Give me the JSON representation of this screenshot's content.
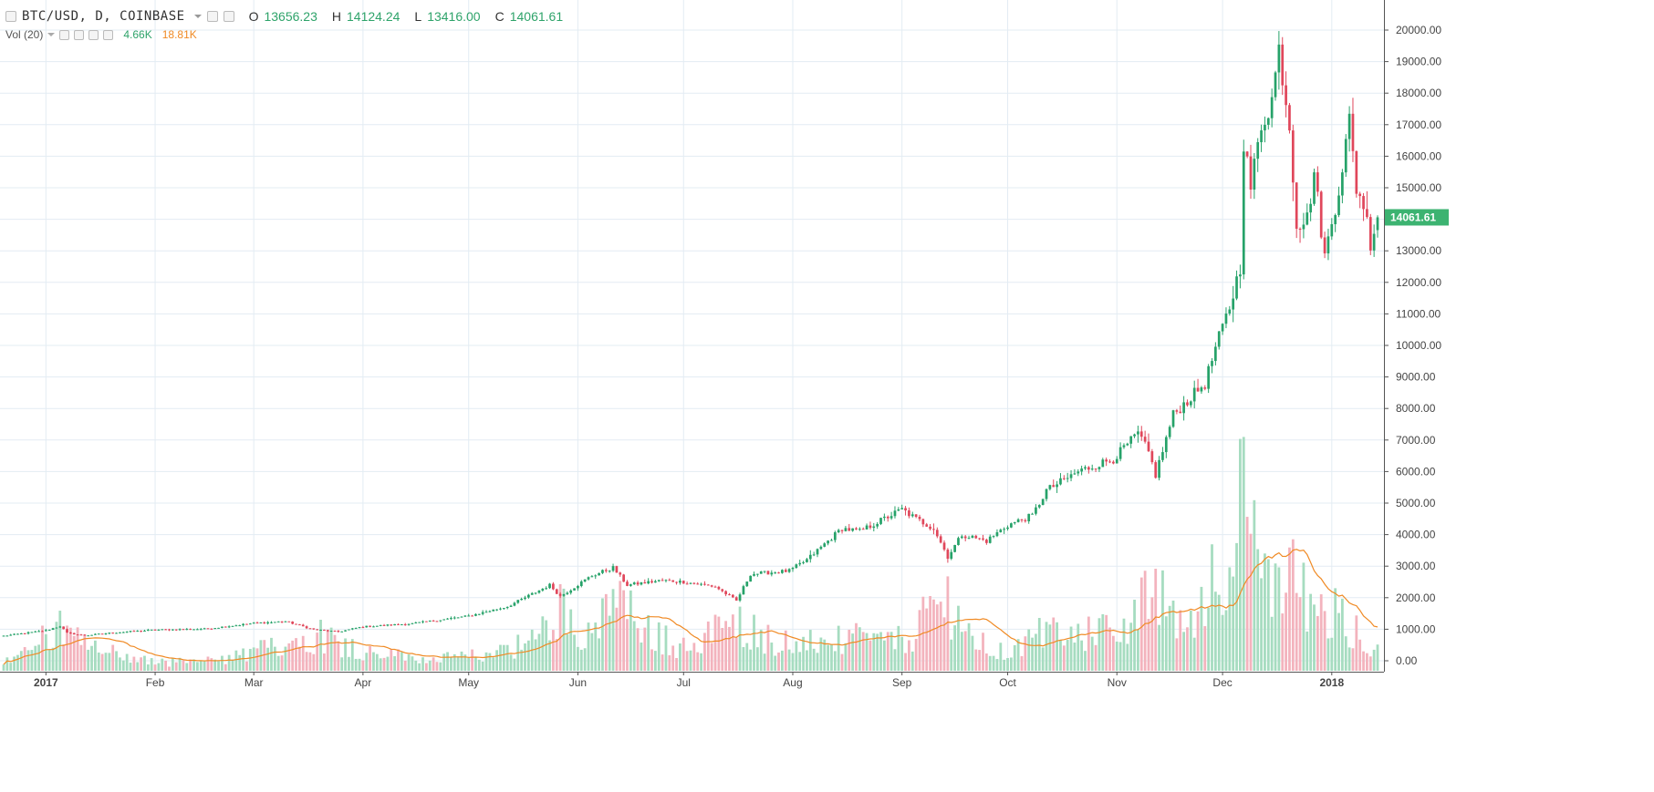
{
  "header": {
    "symbol": "BTC/USD, D, COINBASE",
    "open_label": "O",
    "open": "13656.23",
    "high_label": "H",
    "high": "14124.24",
    "low_label": "L",
    "low": "13416.00",
    "close_label": "C",
    "close": "14061.61",
    "vol_label": "Vol (20)",
    "vol_value": "4.66K",
    "vol_ma_value": "18.81K"
  },
  "colors": {
    "up": "#26a269",
    "down": "#e0475b",
    "up_volume": "#a6dcc0",
    "down_volume": "#f3b3bd",
    "volume_ma": "#f08a24",
    "grid": "#e3ecf3",
    "price_label_bg": "#3cb371"
  },
  "chart_data": {
    "type": "candlestick",
    "price_axis": {
      "min": 0,
      "max": 20000,
      "ticks": [
        0,
        1000,
        2000,
        3000,
        4000,
        5000,
        6000,
        7000,
        8000,
        9000,
        10000,
        11000,
        12000,
        13000,
        14000,
        15000,
        16000,
        17000,
        18000,
        19000,
        20000
      ],
      "tick_labels": [
        "0.00",
        "1000.00",
        "2000.00",
        "3000.00",
        "4000.00",
        "5000.00",
        "6000.00",
        "7000.00",
        "8000.00",
        "9000.00",
        "10000.00",
        "11000.00",
        "12000.00",
        "13000.00",
        "14000.00",
        "15000.00",
        "16000.00",
        "17000.00",
        "18000.00",
        "19000.00",
        "20000.00"
      ]
    },
    "last_price_label": "14061.61",
    "time_axis": {
      "start": "2016-12-20",
      "end": "2018-01-14",
      "labels": [
        "2017",
        "Feb",
        "Mar",
        "Apr",
        "May",
        "Jun",
        "Jul",
        "Aug",
        "Sep",
        "Oct",
        "Nov",
        "Dec",
        "2018"
      ],
      "label_dates": [
        "2017-01-01",
        "2017-02-01",
        "2017-03-01",
        "2017-04-01",
        "2017-05-01",
        "2017-06-01",
        "2017-07-01",
        "2017-08-01",
        "2017-09-01",
        "2017-10-01",
        "2017-11-01",
        "2017-12-01",
        "2018-01-01"
      ],
      "bold_labels": [
        "2017",
        "2018"
      ]
    },
    "grid": true,
    "price_anchors": [
      [
        "2016-12-20",
        790
      ],
      [
        "2017-01-01",
        960
      ],
      [
        "2017-01-05",
        1100
      ],
      [
        "2017-01-07",
        880
      ],
      [
        "2017-01-12",
        800
      ],
      [
        "2017-01-20",
        890
      ],
      [
        "2017-02-01",
        980
      ],
      [
        "2017-02-15",
        1010
      ],
      [
        "2017-03-01",
        1190
      ],
      [
        "2017-03-10",
        1250
      ],
      [
        "2017-03-18",
        990
      ],
      [
        "2017-03-25",
        920
      ],
      [
        "2017-04-01",
        1080
      ],
      [
        "2017-04-15",
        1180
      ],
      [
        "2017-05-01",
        1420
      ],
      [
        "2017-05-12",
        1720
      ],
      [
        "2017-05-24",
        2400
      ],
      [
        "2017-05-27",
        2050
      ],
      [
        "2017-06-05",
        2700
      ],
      [
        "2017-06-11",
        2950
      ],
      [
        "2017-06-15",
        2400
      ],
      [
        "2017-06-25",
        2550
      ],
      [
        "2017-07-01",
        2500
      ],
      [
        "2017-07-10",
        2350
      ],
      [
        "2017-07-16",
        1900
      ],
      [
        "2017-07-20",
        2750
      ],
      [
        "2017-07-31",
        2850
      ],
      [
        "2017-08-05",
        3200
      ],
      [
        "2017-08-15",
        4200
      ],
      [
        "2017-08-20",
        4100
      ],
      [
        "2017-09-01",
        4800
      ],
      [
        "2017-09-05",
        4500
      ],
      [
        "2017-09-10",
        4200
      ],
      [
        "2017-09-14",
        3300
      ],
      [
        "2017-09-18",
        4000
      ],
      [
        "2017-09-25",
        3800
      ],
      [
        "2017-10-01",
        4300
      ],
      [
        "2017-10-08",
        4600
      ],
      [
        "2017-10-12",
        5400
      ],
      [
        "2017-10-21",
        6000
      ],
      [
        "2017-10-31",
        6400
      ],
      [
        "2017-11-07",
        7200
      ],
      [
        "2017-11-10",
        6600
      ],
      [
        "2017-11-12",
        5900
      ],
      [
        "2017-11-17",
        7800
      ],
      [
        "2017-11-26",
        8800
      ],
      [
        "2017-11-29",
        9900
      ],
      [
        "2017-12-03",
        11200
      ],
      [
        "2017-12-06",
        12500
      ],
      [
        "2017-12-07",
        16500
      ],
      [
        "2017-12-09",
        15000
      ],
      [
        "2017-12-12",
        17000
      ],
      [
        "2017-12-15",
        17800
      ],
      [
        "2017-12-17",
        19400
      ],
      [
        "2017-12-20",
        17000
      ],
      [
        "2017-12-22",
        13900
      ],
      [
        "2017-12-25",
        14000
      ],
      [
        "2017-12-27",
        15500
      ],
      [
        "2017-12-30",
        12800
      ],
      [
        "2018-01-03",
        15000
      ],
      [
        "2018-01-06",
        17100
      ],
      [
        "2018-01-08",
        15000
      ],
      [
        "2018-01-10",
        14500
      ],
      [
        "2018-01-12",
        13300
      ],
      [
        "2018-01-14",
        14061
      ]
    ],
    "volume_anchors": [
      [
        "2016-12-20",
        250
      ],
      [
        "2017-01-05",
        900
      ],
      [
        "2017-01-12",
        550
      ],
      [
        "2017-02-01",
        180
      ],
      [
        "2017-02-20",
        230
      ],
      [
        "2017-03-10",
        600
      ],
      [
        "2017-03-20",
        800
      ],
      [
        "2017-04-01",
        420
      ],
      [
        "2017-04-20",
        250
      ],
      [
        "2017-05-01",
        300
      ],
      [
        "2017-05-20",
        650
      ],
      [
        "2017-05-26",
        1400
      ],
      [
        "2017-06-05",
        800
      ],
      [
        "2017-06-12",
        1500
      ],
      [
        "2017-06-20",
        900
      ],
      [
        "2017-07-01",
        500
      ],
      [
        "2017-07-16",
        1100
      ],
      [
        "2017-07-25",
        700
      ],
      [
        "2017-08-05",
        600
      ],
      [
        "2017-08-20",
        700
      ],
      [
        "2017-09-01",
        650
      ],
      [
        "2017-09-14",
        1600
      ],
      [
        "2017-09-20",
        700
      ],
      [
        "2017-10-01",
        350
      ],
      [
        "2017-10-12",
        900
      ],
      [
        "2017-10-25",
        800
      ],
      [
        "2017-11-05",
        1200
      ],
      [
        "2017-11-12",
        1700
      ],
      [
        "2017-11-20",
        1000
      ],
      [
        "2017-11-29",
        2200
      ],
      [
        "2017-12-07",
        3600
      ],
      [
        "2017-12-12",
        2000
      ],
      [
        "2017-12-17",
        1700
      ],
      [
        "2017-12-22",
        2100
      ],
      [
        "2017-12-28",
        1400
      ],
      [
        "2018-01-05",
        1100
      ],
      [
        "2018-01-14",
        500
      ]
    ]
  }
}
